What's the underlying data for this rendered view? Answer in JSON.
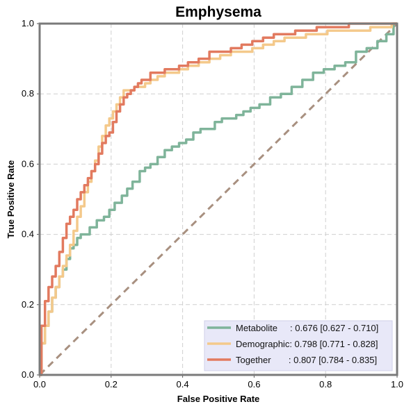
{
  "chart_data": {
    "type": "line",
    "title": "Emphysema",
    "xlabel": "False Positive Rate",
    "ylabel": "True Positive Rate",
    "xlim": [
      0,
      1
    ],
    "ylim": [
      0,
      1
    ],
    "xticks": [
      "0.0",
      "0.2",
      "0.4",
      "0.6",
      "0.8",
      "1.0"
    ],
    "yticks": [
      "0.0",
      "0.2",
      "0.4",
      "0.6",
      "0.8",
      "1.0"
    ],
    "grid": true,
    "legend_position": "bottom-right",
    "series": [
      {
        "name": "Metabolite",
        "label": "Metabolite     : 0.676 [0.627 - 0.710]",
        "color": "#7fb49a",
        "x": [
          0,
          0.01,
          0.02,
          0.03,
          0.04,
          0.05,
          0.06,
          0.07,
          0.08,
          0.09,
          0.1,
          0.11,
          0.12,
          0.13,
          0.15,
          0.17,
          0.19,
          0.2,
          0.22,
          0.24,
          0.25,
          0.27,
          0.29,
          0.3,
          0.32,
          0.34,
          0.36,
          0.38,
          0.4,
          0.42,
          0.44,
          0.46,
          0.48,
          0.5,
          0.52,
          0.54,
          0.56,
          0.58,
          0.6,
          0.63,
          0.66,
          0.69,
          0.72,
          0.75,
          0.78,
          0.81,
          0.84,
          0.87,
          0.9,
          0.93,
          0.96,
          0.98,
          1.0
        ],
        "y": [
          0,
          0.09,
          0.14,
          0.18,
          0.22,
          0.25,
          0.28,
          0.3,
          0.33,
          0.36,
          0.37,
          0.39,
          0.4,
          0.4,
          0.42,
          0.44,
          0.45,
          0.47,
          0.49,
          0.51,
          0.53,
          0.55,
          0.58,
          0.59,
          0.6,
          0.62,
          0.64,
          0.65,
          0.66,
          0.67,
          0.69,
          0.7,
          0.7,
          0.72,
          0.73,
          0.73,
          0.74,
          0.75,
          0.76,
          0.77,
          0.79,
          0.8,
          0.82,
          0.84,
          0.86,
          0.87,
          0.88,
          0.89,
          0.92,
          0.93,
          0.95,
          0.97,
          1.0
        ]
      },
      {
        "name": "Demographic",
        "label": "Demographic: 0.798 [0.771 - 0.828]",
        "color": "#f4c98b",
        "x": [
          0,
          0.01,
          0.02,
          0.03,
          0.04,
          0.05,
          0.06,
          0.07,
          0.08,
          0.09,
          0.1,
          0.11,
          0.12,
          0.13,
          0.14,
          0.15,
          0.16,
          0.17,
          0.18,
          0.19,
          0.2,
          0.21,
          0.22,
          0.23,
          0.24,
          0.25,
          0.26,
          0.27,
          0.28,
          0.29,
          0.3,
          0.32,
          0.34,
          0.36,
          0.38,
          0.4,
          0.43,
          0.46,
          0.49,
          0.52,
          0.55,
          0.58,
          0.61,
          0.64,
          0.67,
          0.7,
          0.73,
          0.76,
          0.79,
          0.82,
          0.85,
          0.88,
          0.91,
          0.94,
          0.97,
          1.0
        ],
        "y": [
          0,
          0.09,
          0.14,
          0.18,
          0.22,
          0.25,
          0.28,
          0.31,
          0.34,
          0.37,
          0.41,
          0.45,
          0.48,
          0.52,
          0.55,
          0.58,
          0.61,
          0.65,
          0.68,
          0.71,
          0.73,
          0.75,
          0.77,
          0.79,
          0.81,
          0.81,
          0.81,
          0.82,
          0.82,
          0.82,
          0.83,
          0.84,
          0.85,
          0.86,
          0.86,
          0.87,
          0.88,
          0.89,
          0.9,
          0.91,
          0.92,
          0.92,
          0.93,
          0.94,
          0.95,
          0.96,
          0.96,
          0.97,
          0.97,
          0.98,
          0.98,
          0.98,
          0.98,
          0.99,
          0.99,
          1.0
        ]
      },
      {
        "name": "Together",
        "label": "Together       : 0.807 [0.784 - 0.835]",
        "color": "#e27a5f",
        "x": [
          0,
          0.01,
          0.02,
          0.03,
          0.04,
          0.05,
          0.06,
          0.07,
          0.08,
          0.09,
          0.1,
          0.11,
          0.12,
          0.13,
          0.14,
          0.15,
          0.16,
          0.17,
          0.18,
          0.19,
          0.2,
          0.21,
          0.22,
          0.23,
          0.24,
          0.25,
          0.26,
          0.27,
          0.28,
          0.29,
          0.3,
          0.32,
          0.34,
          0.36,
          0.38,
          0.4,
          0.43,
          0.46,
          0.49,
          0.52,
          0.55,
          0.58,
          0.61,
          0.64,
          0.67,
          0.7,
          0.73,
          0.76,
          0.79,
          0.82,
          0.85,
          0.88,
          0.91,
          0.94,
          0.97,
          1.0
        ],
        "y": [
          0,
          0.14,
          0.21,
          0.25,
          0.28,
          0.31,
          0.35,
          0.39,
          0.43,
          0.45,
          0.47,
          0.5,
          0.52,
          0.54,
          0.56,
          0.58,
          0.6,
          0.63,
          0.66,
          0.68,
          0.69,
          0.72,
          0.75,
          0.77,
          0.79,
          0.8,
          0.81,
          0.82,
          0.83,
          0.84,
          0.84,
          0.86,
          0.86,
          0.87,
          0.87,
          0.88,
          0.89,
          0.9,
          0.92,
          0.92,
          0.93,
          0.94,
          0.95,
          0.96,
          0.97,
          0.97,
          0.98,
          0.98,
          0.99,
          0.99,
          0.99,
          1.0,
          1.0,
          1.0,
          1.0,
          1.0
        ]
      }
    ],
    "diagonal": {
      "x": [
        0,
        1
      ],
      "y": [
        0,
        1
      ],
      "color": "#a89080",
      "style": "dashed"
    }
  }
}
